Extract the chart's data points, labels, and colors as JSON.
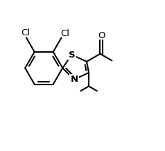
{
  "bg_color": "#ffffff",
  "line_color": "#000000",
  "line_width": 1.5,
  "font_size": 9.5,
  "xlim": [
    -0.05,
    1.15
  ],
  "ylim": [
    -0.05,
    1.05
  ]
}
